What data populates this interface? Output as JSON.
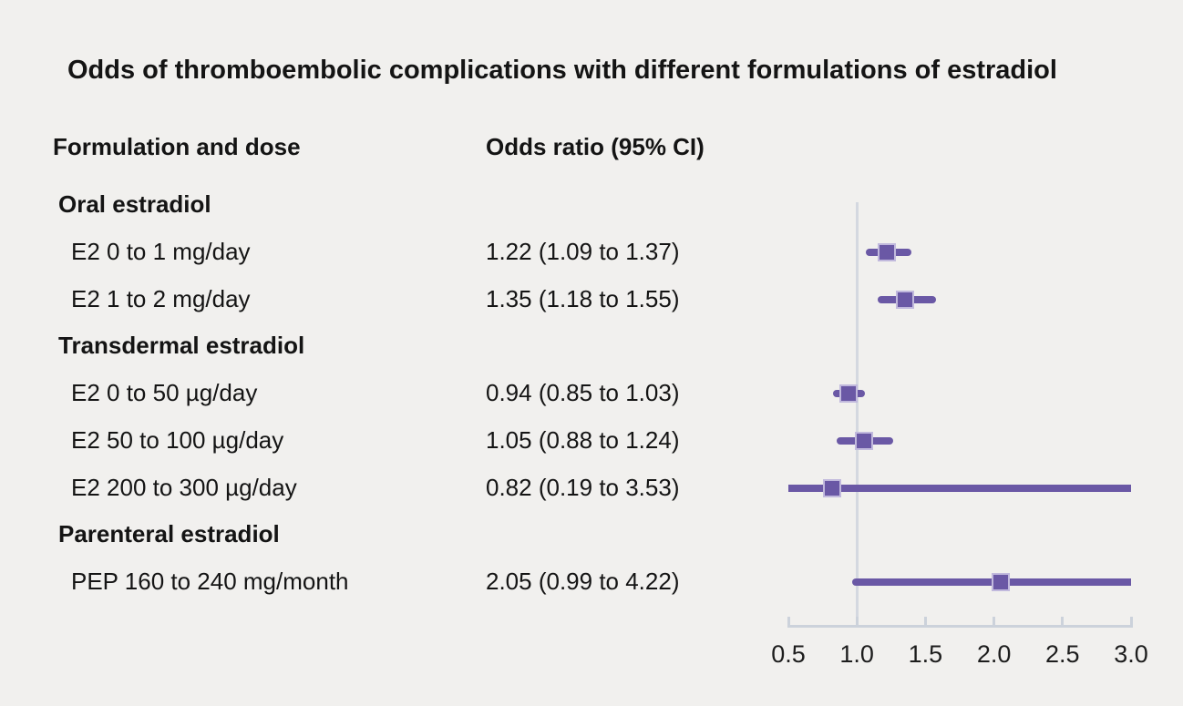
{
  "title": "Odds of thromboembolic complications with different formulations of estradiol",
  "columns": {
    "formulation": "Formulation and dose",
    "odds_ratio": "Odds ratio (95% CI)"
  },
  "colors": {
    "background": "#f1f0ee",
    "text": "#141414",
    "marker_purple": "#6a58a5",
    "marker_edge_light_purple": "#c1b9dd",
    "axis_gray": "#ccd2db",
    "reference_line_gray": "#d4d8e0"
  },
  "chart_data": {
    "type": "forest",
    "title": "Odds of thromboembolic complications with different formulations of estradiol",
    "xlabel": "",
    "ylabel": "",
    "xlim": [
      0.5,
      3.0
    ],
    "x_ticks": [
      0.5,
      1.0,
      1.5,
      2.0,
      2.5,
      3.0
    ],
    "x_tick_labels": [
      "0.5",
      "1.0",
      "1.5",
      "2.0",
      "2.5",
      "3.0"
    ],
    "reference_line_x": 1.0,
    "grid": false,
    "legend": false,
    "rows": [
      {
        "label": "Oral estradiol",
        "header": true
      },
      {
        "label": "E2 0 to 1 mg/day",
        "value_text": "1.22 (1.09 to 1.37)",
        "or": 1.22,
        "ci_low": 1.09,
        "ci_high": 1.37
      },
      {
        "label": "E2 1 to 2 mg/day",
        "value_text": "1.35 (1.18 to 1.55)",
        "or": 1.35,
        "ci_low": 1.18,
        "ci_high": 1.55
      },
      {
        "label": "Transdermal estradiol",
        "header": true
      },
      {
        "label": "E2 0 to 50 µg/day",
        "value_text": "0.94 (0.85 to 1.03)",
        "or": 0.94,
        "ci_low": 0.85,
        "ci_high": 1.03
      },
      {
        "label": "E2 50 to 100 µg/day",
        "value_text": "1.05 (0.88 to 1.24)",
        "or": 1.05,
        "ci_low": 0.88,
        "ci_high": 1.24
      },
      {
        "label": "E2 200 to 300 µg/day",
        "value_text": "0.82 (0.19 to 3.53)",
        "or": 0.82,
        "ci_low": 0.19,
        "ci_high": 3.53
      },
      {
        "label": "Parenteral estradiol",
        "header": true
      },
      {
        "label": "PEP 160 to 240 mg/month",
        "value_text": "2.05 (0.99 to 4.22)",
        "or": 2.05,
        "ci_low": 0.99,
        "ci_high": 4.22
      }
    ]
  }
}
